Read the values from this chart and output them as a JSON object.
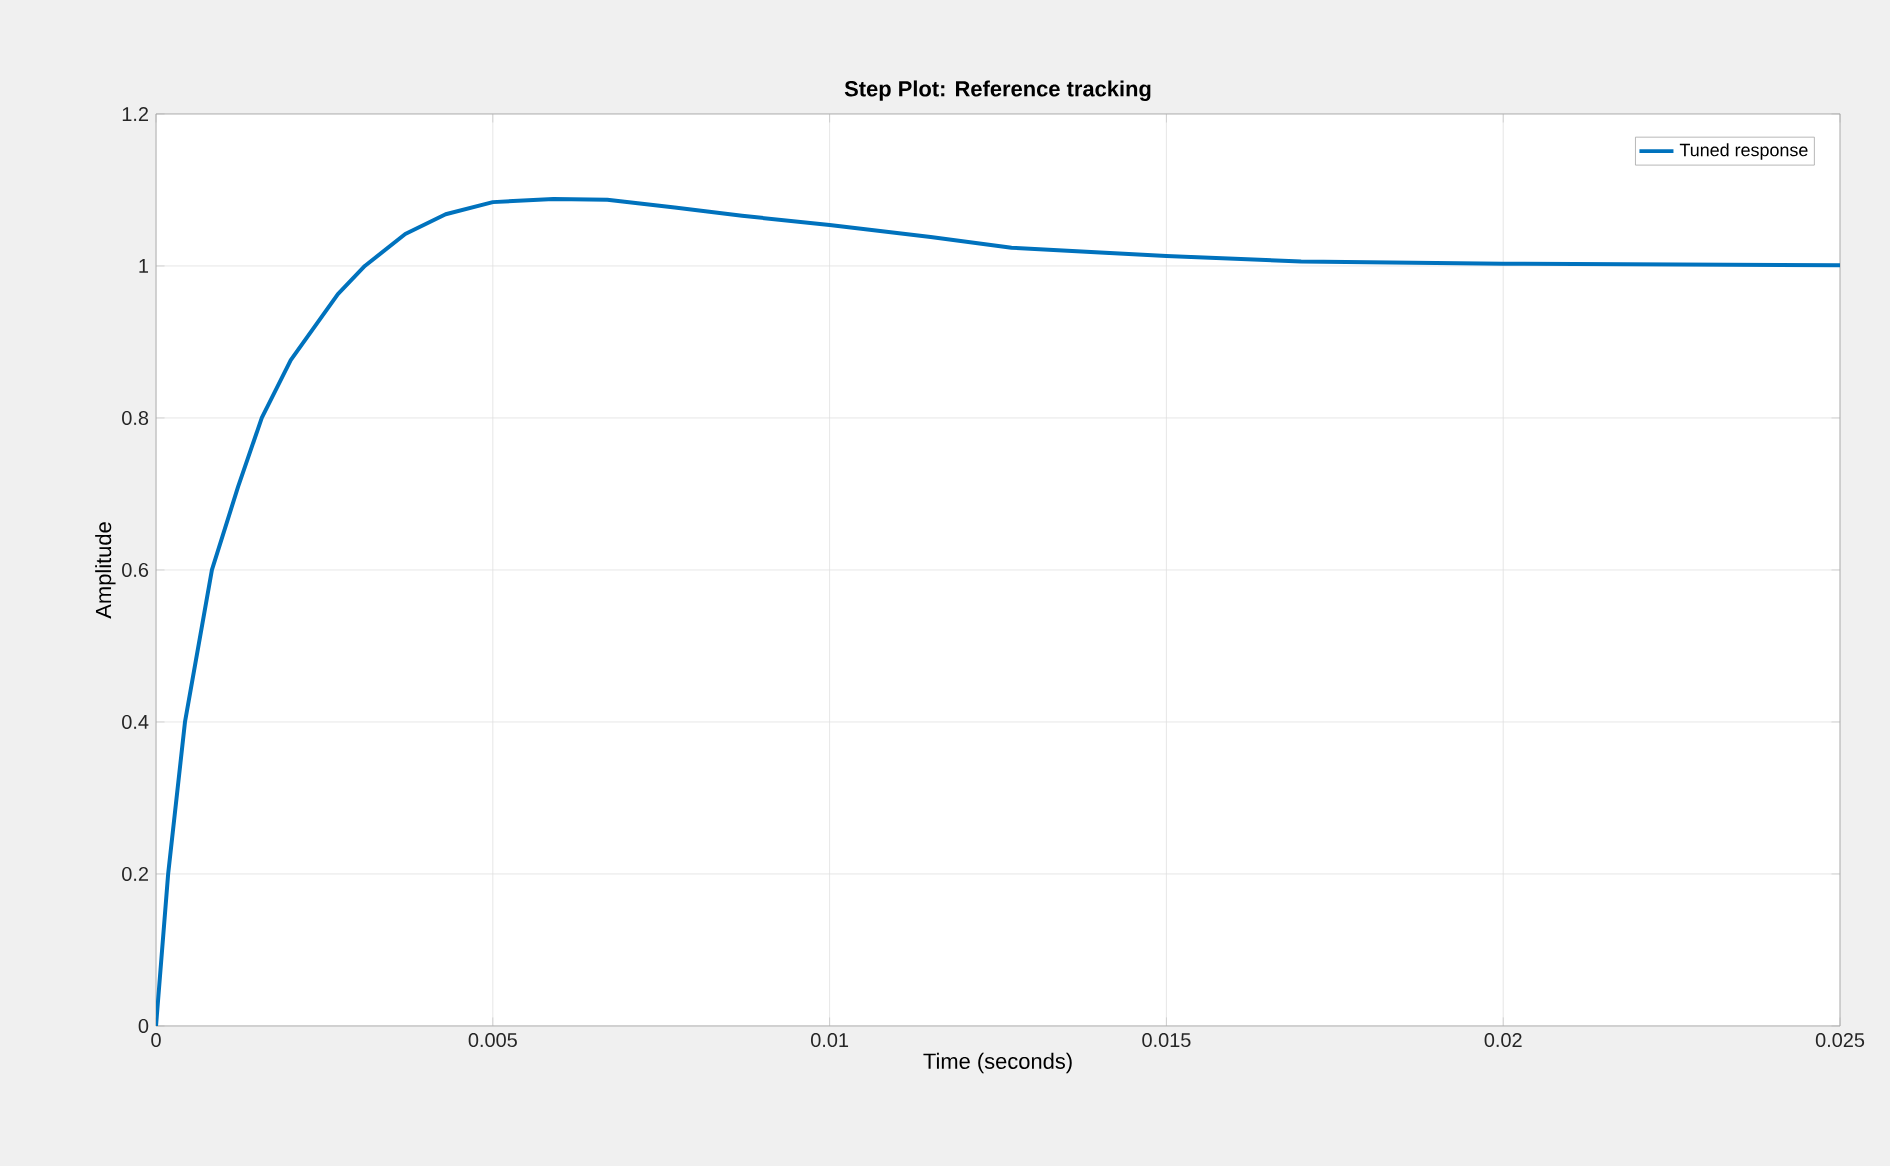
{
  "chart_data": {
    "type": "line",
    "title": "Step Plot: Reference tracking",
    "xlabel": "Time (seconds)",
    "ylabel": "Amplitude",
    "x": [
      0,
      0.00018,
      0.00043,
      0.00083,
      0.00122,
      0.00157,
      0.002,
      0.0027,
      0.0031,
      0.0037,
      0.0043,
      0.005,
      0.0059,
      0.0067,
      0.0077,
      0.0087,
      0.01,
      0.0115,
      0.0127,
      0.015,
      0.017,
      0.02,
      0.025
    ],
    "series": [
      {
        "name": "Tuned response",
        "color": "#0072bd",
        "values": [
          0,
          0.2,
          0.4,
          0.6,
          0.71,
          0.8,
          0.876,
          0.963,
          1.0,
          1.042,
          1.068,
          1.084,
          1.088,
          1.087,
          1.077,
          1.066,
          1.054,
          1.038,
          1.024,
          1.013,
          1.006,
          1.003,
          1.001
        ]
      }
    ],
    "xlim": [
      0,
      0.025
    ],
    "xticks": [
      0,
      0.005,
      0.01,
      0.015,
      0.02,
      0.025
    ],
    "ylim": [
      0,
      1.2
    ],
    "yticks": [
      0,
      0.2,
      0.4,
      0.6,
      0.8,
      1,
      1.2
    ],
    "grid": true,
    "legend": "top right",
    "marker": "none",
    "line_style": "solid"
  }
}
